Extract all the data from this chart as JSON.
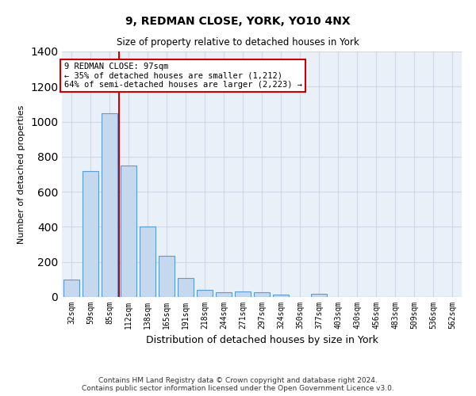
{
  "title": "9, REDMAN CLOSE, YORK, YO10 4NX",
  "subtitle": "Size of property relative to detached houses in York",
  "xlabel": "Distribution of detached houses by size in York",
  "ylabel": "Number of detached properties",
  "categories": [
    "32sqm",
    "59sqm",
    "85sqm",
    "112sqm",
    "138sqm",
    "165sqm",
    "191sqm",
    "218sqm",
    "244sqm",
    "271sqm",
    "297sqm",
    "324sqm",
    "350sqm",
    "377sqm",
    "403sqm",
    "430sqm",
    "456sqm",
    "483sqm",
    "509sqm",
    "536sqm",
    "562sqm"
  ],
  "values": [
    100,
    720,
    1050,
    750,
    400,
    235,
    110,
    40,
    25,
    30,
    25,
    15,
    0,
    20,
    0,
    0,
    0,
    0,
    0,
    0,
    0
  ],
  "bar_color": "#c5d8ed",
  "bar_edge_color": "#5b9bd5",
  "property_line_x": 2.5,
  "property_line_color": "#cc0000",
  "annotation_text": "9 REDMAN CLOSE: 97sqm\n← 35% of detached houses are smaller (1,212)\n64% of semi-detached houses are larger (2,223) →",
  "annotation_box_color": "#ffffff",
  "annotation_box_edge_color": "#cc0000",
  "ylim": [
    0,
    1400
  ],
  "footnote": "Contains HM Land Registry data © Crown copyright and database right 2024.\nContains public sector information licensed under the Open Government Licence v3.0.",
  "grid_color": "#d0d8e8",
  "bg_color": "#eaf0f8"
}
